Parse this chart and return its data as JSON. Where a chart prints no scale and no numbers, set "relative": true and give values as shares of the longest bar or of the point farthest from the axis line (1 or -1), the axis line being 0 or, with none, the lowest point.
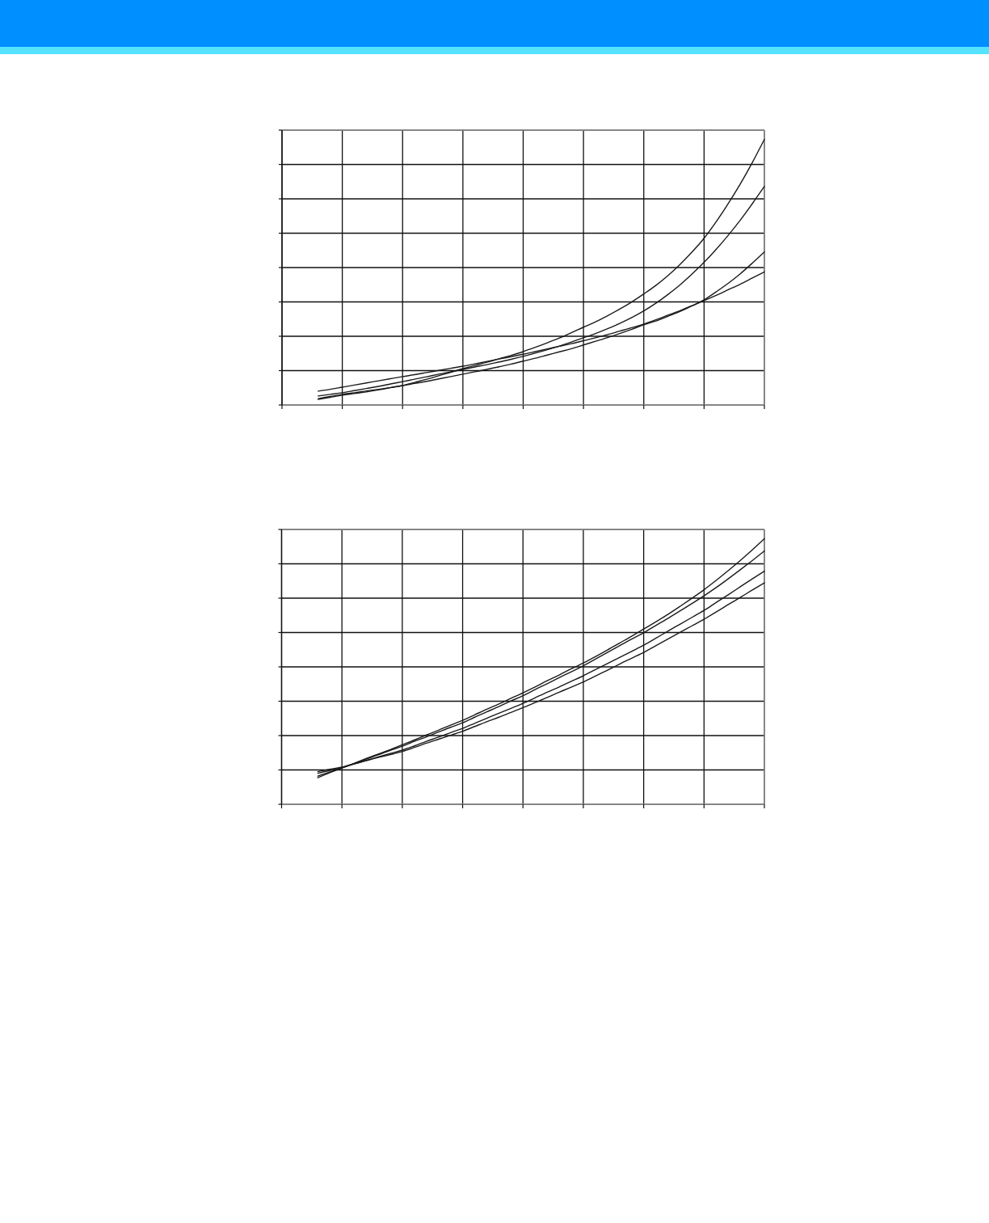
{
  "chart_data": [
    {
      "type": "line",
      "relative": true,
      "grid": true,
      "categories": [
        null,
        null,
        null,
        null,
        null,
        null,
        null,
        null,
        null,
        null,
        null,
        null,
        null,
        null,
        null,
        null,
        null,
        null,
        null,
        null,
        null,
        null,
        null,
        null,
        null,
        null,
        null,
        null,
        null,
        null,
        null,
        null,
        null,
        null,
        null,
        null,
        null,
        null,
        null,
        null,
        null
      ],
      "series": [
        {
          "color": "#1a1a1a",
          "values": [
            null,
            null,
            null,
            0.021,
            0.029,
            0.037,
            0.043,
            0.049,
            0.057,
            0.065,
            0.073,
            0.085,
            0.097,
            0.11,
            0.123,
            0.137,
            0.149,
            0.161,
            0.174,
            0.187,
            0.201,
            0.217,
            0.234,
            0.252,
            0.272,
            0.293,
            0.313,
            0.336,
            0.361,
            0.388,
            0.418,
            0.45,
            0.487,
            0.529,
            0.576,
            0.628,
            0.69,
            0.758,
            0.832,
            0.913,
            1
          ]
        },
        {
          "color": "#1a1a1a",
          "values": [
            null,
            null,
            null,
            0.034,
            0.04,
            0.046,
            0.054,
            0.062,
            0.07,
            0.079,
            0.088,
            0.097,
            0.106,
            0.116,
            0.125,
            0.134,
            0.143,
            0.152,
            0.162,
            0.172,
            0.183,
            0.195,
            0.208,
            0.222,
            0.237,
            0.253,
            0.269,
            0.287,
            0.307,
            0.329,
            0.354,
            0.383,
            0.416,
            0.452,
            0.493,
            0.537,
            0.586,
            0.639,
            0.696,
            0.758,
            0.823
          ]
        },
        {
          "color": "#1a1a1a",
          "values": [
            null,
            null,
            null,
            0.024,
            0.032,
            0.04,
            0.046,
            0.053,
            0.059,
            0.066,
            0.073,
            0.081,
            0.089,
            0.098,
            0.107,
            0.116,
            0.125,
            0.134,
            0.144,
            0.154,
            0.165,
            0.176,
            0.188,
            0.2,
            0.212,
            0.226,
            0.24,
            0.254,
            0.269,
            0.285,
            0.302,
            0.316,
            0.334,
            0.352,
            0.373,
            0.396,
            0.426,
            0.458,
            0.494,
            0.534,
            0.576
          ]
        },
        {
          "color": "#1a1a1a",
          "values": [
            null,
            null,
            null,
            0.052,
            0.059,
            0.067,
            0.075,
            0.083,
            0.091,
            0.099,
            0.107,
            0.114,
            0.122,
            0.13,
            0.138,
            0.146,
            0.155,
            0.164,
            0.173,
            0.182,
            0.191,
            0.201,
            0.211,
            0.221,
            0.231,
            0.242,
            0.253,
            0.265,
            0.278,
            0.291,
            0.305,
            0.321,
            0.338,
            0.355,
            0.374,
            0.393,
            0.413,
            0.434,
            0.455,
            0.478,
            0.501
          ]
        }
      ]
    },
    {
      "type": "line",
      "relative": true,
      "grid": true,
      "categories": [
        null,
        null,
        null,
        null,
        null,
        null,
        null,
        null,
        null,
        null,
        null,
        null,
        null,
        null,
        null,
        null,
        null,
        null,
        null,
        null,
        null,
        null,
        null,
        null,
        null,
        null,
        null,
        null,
        null,
        null,
        null,
        null,
        null,
        null,
        null,
        null,
        null,
        null,
        null,
        null,
        null
      ],
      "series": [
        {
          "color": "#1a1a1a",
          "values": [
            null,
            null,
            null,
            0.1,
            0.119,
            0.137,
            0.154,
            0.172,
            0.189,
            0.206,
            0.224,
            0.242,
            0.261,
            0.279,
            0.298,
            0.316,
            0.337,
            0.358,
            0.378,
            0.399,
            0.42,
            0.442,
            0.465,
            0.487,
            0.51,
            0.532,
            0.556,
            0.581,
            0.607,
            0.633,
            0.66,
            0.687,
            0.715,
            0.745,
            0.776,
            0.808,
            0.843,
            0.88,
            0.918,
            0.958,
            1
          ]
        },
        {
          "color": "#1a1a1a",
          "values": [
            null,
            null,
            null,
            0.106,
            0.122,
            0.137,
            0.153,
            0.17,
            0.186,
            0.203,
            0.219,
            0.237,
            0.254,
            0.272,
            0.29,
            0.307,
            0.328,
            0.348,
            0.368,
            0.389,
            0.409,
            0.432,
            0.454,
            0.477,
            0.499,
            0.522,
            0.547,
            0.572,
            0.597,
            0.622,
            0.646,
            0.673,
            0.7,
            0.728,
            0.756,
            0.785,
            0.816,
            0.849,
            0.883,
            0.918,
            0.954
          ]
        },
        {
          "color": "#1a1a1a",
          "values": [
            null,
            null,
            null,
            0.117,
            0.128,
            0.138,
            0.152,
            0.165,
            0.178,
            0.191,
            0.204,
            0.22,
            0.237,
            0.253,
            0.27,
            0.286,
            0.305,
            0.324,
            0.343,
            0.361,
            0.38,
            0.401,
            0.422,
            0.442,
            0.463,
            0.484,
            0.507,
            0.53,
            0.553,
            0.576,
            0.599,
            0.625,
            0.652,
            0.678,
            0.704,
            0.73,
            0.76,
            0.789,
            0.819,
            0.849,
            0.878
          ]
        },
        {
          "color": "#1a1a1a",
          "values": [
            null,
            null,
            null,
            0.123,
            0.132,
            0.14,
            0.152,
            0.164,
            0.176,
            0.187,
            0.199,
            0.214,
            0.23,
            0.245,
            0.26,
            0.275,
            0.293,
            0.311,
            0.328,
            0.346,
            0.364,
            0.383,
            0.402,
            0.422,
            0.441,
            0.461,
            0.483,
            0.505,
            0.528,
            0.55,
            0.572,
            0.597,
            0.622,
            0.647,
            0.672,
            0.697,
            0.724,
            0.752,
            0.779,
            0.807,
            0.834
          ]
        }
      ]
    }
  ]
}
